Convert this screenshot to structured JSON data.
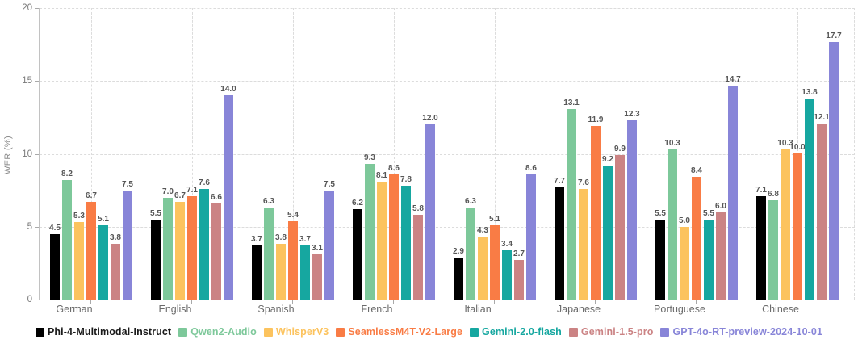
{
  "chart_data": {
    "type": "bar",
    "title": "",
    "xlabel": "",
    "ylabel": "WER (%)",
    "ylim": [
      0,
      20
    ],
    "yticks": [
      0,
      5,
      10,
      15,
      20
    ],
    "grid": true,
    "grid_style": "dashed",
    "legend_position": "bottom",
    "categories": [
      "German",
      "English",
      "Spanish",
      "French",
      "Italian",
      "Japanese",
      "Portuguese",
      "Chinese"
    ],
    "series": [
      {
        "name": "Phi-4-Multimodal-Instruct",
        "color": "#000000",
        "label_color": "#1a1a1a",
        "values": [
          4.5,
          5.5,
          3.7,
          6.2,
          2.9,
          7.7,
          5.5,
          7.1
        ]
      },
      {
        "name": "Qwen2-Audio",
        "color": "#7dc89a",
        "label_color": "#7dc89a",
        "values": [
          8.2,
          7.0,
          6.3,
          9.3,
          6.3,
          13.1,
          10.3,
          6.8
        ]
      },
      {
        "name": "WhisperV3",
        "color": "#fcc35e",
        "label_color": "#fcc35e",
        "values": [
          5.3,
          6.7,
          3.8,
          8.1,
          4.3,
          7.6,
          5.0,
          10.3
        ]
      },
      {
        "name": "SeamlessM4T-V2-Large",
        "color": "#f97c45",
        "label_color": "#f97c45",
        "values": [
          6.7,
          7.1,
          5.4,
          8.6,
          5.1,
          11.9,
          8.4,
          10.0
        ]
      },
      {
        "name": "Gemini-2.0-flash",
        "color": "#16a7a0",
        "label_color": "#16a7a0",
        "values": [
          5.1,
          7.6,
          3.7,
          7.8,
          3.4,
          9.2,
          5.5,
          13.8
        ]
      },
      {
        "name": "Gemini-1.5-pro",
        "color": "#cb8384",
        "label_color": "#cb8384",
        "values": [
          3.8,
          6.6,
          3.1,
          5.8,
          2.7,
          9.9,
          6.0,
          12.1
        ]
      },
      {
        "name": "GPT-4o-RT-preview-2024-10-01",
        "color": "#8885d8",
        "label_color": "#8885d8",
        "values": [
          7.5,
          14.0,
          7.5,
          12.0,
          8.6,
          12.3,
          14.7,
          17.7
        ]
      }
    ],
    "value_label_format": "one-decimal",
    "value_label_color": "#565656",
    "axis_color": "#bdbdbd",
    "gridline_color": "#dcdcdc"
  }
}
